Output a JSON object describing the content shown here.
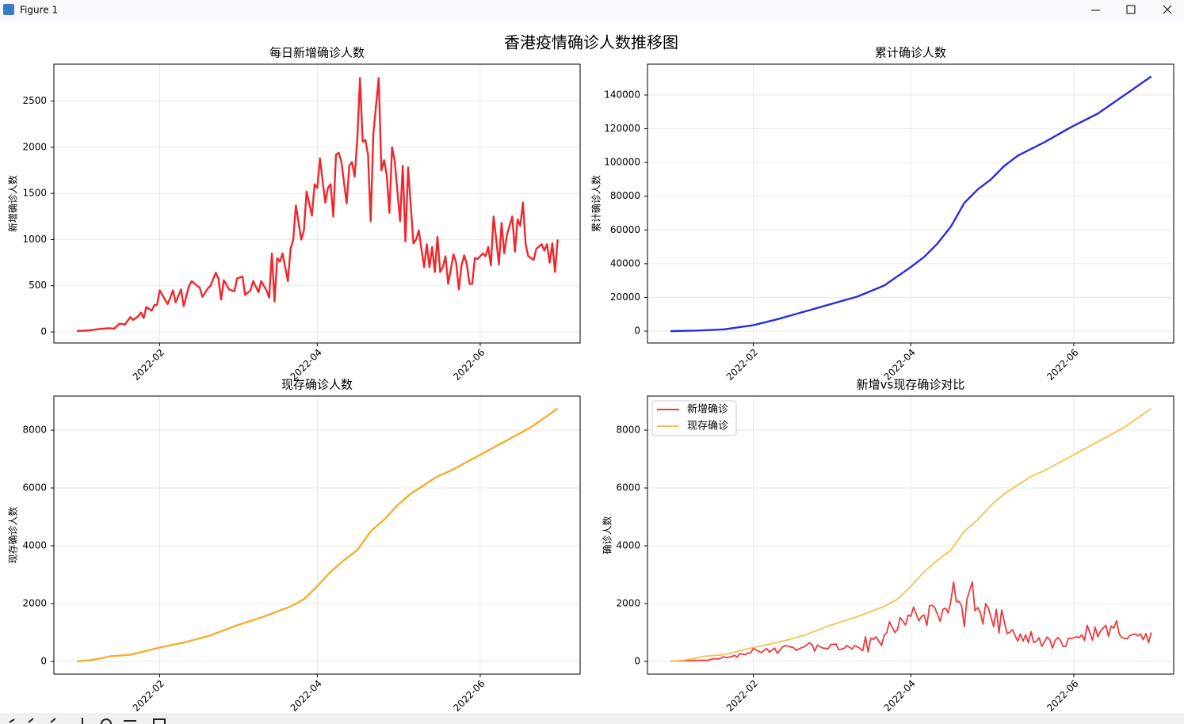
{
  "window": {
    "title": "Figure 1"
  },
  "figure_title": "香港疫情确诊人数推移图",
  "chart_data": [
    {
      "type": "line",
      "title": "每日新增确诊人数",
      "ylabel": "新增确诊人数",
      "x": [
        0,
        4,
        8,
        12,
        14,
        16,
        18,
        20,
        21,
        23,
        24,
        25,
        26,
        28,
        29,
        30,
        31,
        33,
        34,
        36,
        37,
        39,
        40,
        42,
        43,
        45,
        46,
        47,
        49,
        50,
        52,
        53,
        54,
        55,
        57,
        59,
        60,
        62,
        63,
        65,
        66,
        68,
        69,
        71,
        72,
        73,
        74,
        75,
        76,
        77,
        79,
        80,
        81,
        82,
        84,
        85,
        86,
        88,
        89,
        90,
        91,
        93,
        94,
        95,
        96,
        97,
        98,
        99,
        101,
        102,
        103,
        104,
        105,
        106,
        107,
        108,
        109,
        110,
        111,
        113,
        114,
        115,
        116,
        117,
        118,
        119,
        121,
        122,
        123,
        124,
        126,
        127,
        128,
        130,
        131,
        132,
        133,
        134,
        135,
        136,
        137,
        138,
        139,
        141,
        142,
        143,
        144,
        145,
        146,
        147,
        148,
        149,
        150,
        152,
        153,
        154,
        155,
        156,
        157,
        158,
        159,
        160,
        161,
        163,
        164,
        165,
        166,
        167,
        168,
        169,
        171,
        172,
        174,
        175,
        176,
        177,
        178,
        179,
        180
      ],
      "series": [
        {
          "color": "#f0282d",
          "values": [
            10,
            15,
            30,
            40,
            35,
            90,
            80,
            160,
            130,
            170,
            210,
            150,
            270,
            230,
            290,
            290,
            450,
            350,
            300,
            450,
            320,
            460,
            280,
            500,
            550,
            500,
            480,
            380,
            470,
            500,
            640,
            580,
            350,
            560,
            460,
            440,
            580,
            600,
            400,
            450,
            550,
            430,
            550,
            450,
            370,
            850,
            330,
            800,
            760,
            850,
            550,
            900,
            1000,
            1370,
            1000,
            1100,
            1520,
            1260,
            1600,
            1560,
            1880,
            1400,
            1560,
            1600,
            1250,
            1920,
            1940,
            1850,
            1390,
            1800,
            1840,
            1680,
            2100,
            2750,
            2060,
            2080,
            1920,
            1200,
            2150,
            2750,
            1750,
            1860,
            1700,
            1290,
            2000,
            1850,
            1200,
            1800,
            980,
            1780,
            960,
            1000,
            1100,
            700,
            950,
            700,
            920,
            650,
            1030,
            650,
            700,
            820,
            520,
            840,
            750,
            460,
            720,
            830,
            730,
            520,
            520,
            800,
            790,
            850,
            820,
            920,
            720,
            1250,
            1000,
            730,
            1180,
            850,
            1050,
            1250,
            870,
            1220,
            1150,
            1400,
            950,
            820,
            780,
            900,
            950,
            880,
            950,
            750,
            960,
            650,
            1000
          ]
        }
      ],
      "xlim": [
        -8.6,
        188.4
      ],
      "xticks": [
        {
          "value": 31,
          "label": "2022-02"
        },
        {
          "value": 90,
          "label": "2022-04"
        },
        {
          "value": 151,
          "label": "2022-06"
        }
      ],
      "ylim": [
        -120,
        2900
      ],
      "yticks": [
        0,
        500,
        1000,
        1500,
        2000,
        2500
      ],
      "grid": true
    },
    {
      "type": "line",
      "title": "累计确诊人数",
      "ylabel": "累计确诊人数",
      "x": [
        0,
        10,
        20,
        31,
        40,
        50,
        60,
        70,
        80,
        90,
        95,
        100,
        105,
        110,
        115,
        120,
        125,
        130,
        135,
        140,
        150,
        160,
        170,
        180
      ],
      "series": [
        {
          "color": "#2a2ae6",
          "values": [
            0,
            300,
            1000,
            3500,
            7000,
            11500,
            16000,
            20500,
            27000,
            38000,
            44000,
            52000,
            62000,
            76000,
            84000,
            90000,
            98000,
            104000,
            108000,
            112000,
            121000,
            129000,
            140000,
            151000
          ]
        }
      ],
      "xlim": [
        -8.6,
        188.4
      ],
      "xticks": [
        {
          "value": 31,
          "label": "2022-02"
        },
        {
          "value": 90,
          "label": "2022-04"
        },
        {
          "value": 151,
          "label": "2022-06"
        }
      ],
      "ylim": [
        -7050,
        158300
      ],
      "yticks": [
        0,
        20000,
        40000,
        60000,
        80000,
        100000,
        120000,
        140000
      ],
      "grid": true
    },
    {
      "type": "line",
      "title": "现存确诊人数",
      "ylabel": "现存确诊人数",
      "x": [
        0,
        5,
        10,
        12,
        20,
        31,
        40,
        50,
        60,
        70,
        80,
        85,
        90,
        95,
        100,
        105,
        110,
        115,
        120,
        125,
        130,
        135,
        140,
        150,
        160,
        170,
        180
      ],
      "series": [
        {
          "color": "#f7ad2f",
          "values": [
            0,
            40,
            120,
            170,
            230,
            480,
            650,
            900,
            1250,
            1550,
            1900,
            2150,
            2600,
            3100,
            3500,
            3850,
            4500,
            4900,
            5400,
            5800,
            6100,
            6400,
            6600,
            7100,
            7600,
            8100,
            8750
          ]
        }
      ],
      "xlim": [
        -8.6,
        188.4
      ],
      "xticks": [
        {
          "value": 31,
          "label": "2022-02"
        },
        {
          "value": 90,
          "label": "2022-04"
        },
        {
          "value": 151,
          "label": "2022-06"
        }
      ],
      "ylim": [
        -440,
        9180
      ],
      "yticks": [
        0,
        2000,
        4000,
        6000,
        8000
      ],
      "grid": true
    },
    {
      "type": "line",
      "title": "新增vs现存确诊对比",
      "ylabel": "确诊人数",
      "legend": "upper left",
      "series": [
        {
          "name": "新增确诊",
          "color": "#ee3a3e",
          "x": [
            0,
            4,
            8,
            12,
            14,
            16,
            18,
            20,
            21,
            23,
            24,
            25,
            26,
            28,
            29,
            30,
            31,
            33,
            34,
            36,
            37,
            39,
            40,
            42,
            43,
            45,
            46,
            47,
            49,
            50,
            52,
            53,
            54,
            55,
            57,
            59,
            60,
            62,
            63,
            65,
            66,
            68,
            69,
            71,
            72,
            73,
            74,
            75,
            76,
            77,
            79,
            80,
            81,
            82,
            84,
            85,
            86,
            88,
            89,
            90,
            91,
            93,
            94,
            95,
            96,
            97,
            98,
            99,
            101,
            102,
            103,
            104,
            105,
            106,
            107,
            108,
            109,
            110,
            111,
            113,
            114,
            115,
            116,
            117,
            118,
            119,
            121,
            122,
            123,
            124,
            126,
            127,
            128,
            130,
            131,
            132,
            133,
            134,
            135,
            136,
            137,
            138,
            139,
            141,
            142,
            143,
            144,
            145,
            146,
            147,
            148,
            149,
            150,
            152,
            153,
            154,
            155,
            156,
            157,
            158,
            159,
            160,
            161,
            163,
            164,
            165,
            166,
            167,
            168,
            169,
            171,
            172,
            174,
            175,
            176,
            177,
            178,
            179,
            180
          ],
          "values": [
            10,
            15,
            30,
            40,
            35,
            90,
            80,
            160,
            130,
            170,
            210,
            150,
            270,
            230,
            290,
            290,
            450,
            350,
            300,
            450,
            320,
            460,
            280,
            500,
            550,
            500,
            480,
            380,
            470,
            500,
            640,
            580,
            350,
            560,
            460,
            440,
            580,
            600,
            400,
            450,
            550,
            430,
            550,
            450,
            370,
            850,
            330,
            800,
            760,
            850,
            550,
            900,
            1000,
            1370,
            1000,
            1100,
            1520,
            1260,
            1600,
            1560,
            1880,
            1400,
            1560,
            1600,
            1250,
            1920,
            1940,
            1850,
            1390,
            1800,
            1840,
            1680,
            2100,
            2750,
            2060,
            2080,
            1920,
            1200,
            2150,
            2750,
            1750,
            1860,
            1700,
            1290,
            2000,
            1850,
            1200,
            1800,
            980,
            1780,
            960,
            1000,
            1100,
            700,
            950,
            700,
            920,
            650,
            1030,
            650,
            700,
            820,
            520,
            840,
            750,
            460,
            720,
            830,
            730,
            520,
            520,
            800,
            790,
            850,
            820,
            920,
            720,
            1250,
            1000,
            730,
            1180,
            850,
            1050,
            1250,
            870,
            1220,
            1150,
            1400,
            950,
            820,
            780,
            900,
            950,
            880,
            950,
            750,
            960,
            650,
            1000
          ]
        },
        {
          "name": "现存确诊",
          "color": "#f6c050",
          "x": [
            0,
            5,
            10,
            12,
            20,
            31,
            40,
            50,
            60,
            70,
            80,
            85,
            90,
            95,
            100,
            105,
            110,
            115,
            120,
            125,
            130,
            135,
            140,
            150,
            160,
            170,
            180
          ],
          "values": [
            0,
            40,
            120,
            170,
            230,
            480,
            650,
            900,
            1250,
            1550,
            1900,
            2150,
            2600,
            3100,
            3500,
            3850,
            4500,
            4900,
            5400,
            5800,
            6100,
            6400,
            6600,
            7100,
            7600,
            8100,
            8750
          ]
        }
      ],
      "xlim": [
        -8.6,
        188.4
      ],
      "xticks": [
        {
          "value": 31,
          "label": "2022-02"
        },
        {
          "value": 90,
          "label": "2022-04"
        },
        {
          "value": 151,
          "label": "2022-06"
        }
      ],
      "ylim": [
        -440,
        9180
      ],
      "yticks": [
        0,
        2000,
        4000,
        6000,
        8000
      ],
      "grid": true
    }
  ]
}
